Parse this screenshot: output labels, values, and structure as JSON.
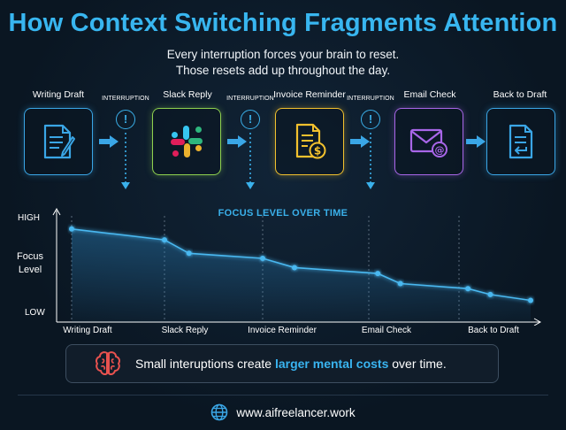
{
  "header": {
    "title": "How Context Switching Fragments Attention",
    "subtitle_line1": "Every interruption forces your brain to reset.",
    "subtitle_line2": "Those resets add up throughout the day."
  },
  "steps": [
    {
      "label": "Writing Draft",
      "icon": "document-pen-icon",
      "color": "#3aa6e6"
    },
    {
      "label": "Slack Reply",
      "icon": "slack-logo-icon",
      "color": "#8fd14f"
    },
    {
      "label": "Invoice Reminder",
      "icon": "invoice-dollar-icon",
      "color": "#f2c12e"
    },
    {
      "label": "Email Check",
      "icon": "envelope-at-icon",
      "color": "#a866e8"
    },
    {
      "label": "Back to Draft",
      "icon": "document-return-icon",
      "color": "#3aa6e6"
    }
  ],
  "interruption_label": "INTERRUPTION",
  "chart": {
    "title": "FOCUS LEVEL OVER TIME",
    "ylabel_line1": "Focus",
    "ylabel_line2": "Level",
    "y_high": "HIGH",
    "y_low": "LOW"
  },
  "chart_data": {
    "type": "line",
    "title": "FOCUS LEVEL OVER TIME",
    "ylabel": "Focus Level",
    "categories": [
      "Writing Draft",
      "Slack Reply",
      "Invoice Reminder",
      "Email Check",
      "Back to Draft"
    ],
    "ylim": [
      0,
      100
    ],
    "points": [
      {
        "x": 0.0,
        "y": 95
      },
      {
        "x": 1.0,
        "y": 82
      },
      {
        "x": 1.25,
        "y": 66
      },
      {
        "x": 2.0,
        "y": 60
      },
      {
        "x": 2.3,
        "y": 49
      },
      {
        "x": 3.1,
        "y": 42
      },
      {
        "x": 3.35,
        "y": 30
      },
      {
        "x": 4.1,
        "y": 24
      },
      {
        "x": 4.35,
        "y": 17
      },
      {
        "x": 4.8,
        "y": 10
      }
    ],
    "line_color": "#4ab8f0",
    "grid": "vertical dotted lines at categories"
  },
  "callout": {
    "icon": "brain-icon",
    "text_before": "Small interuptions create ",
    "highlight": "larger mental costs",
    "text_after": " over time."
  },
  "footer": {
    "icon": "globe-icon",
    "url": "www.aifreelancer.work"
  }
}
